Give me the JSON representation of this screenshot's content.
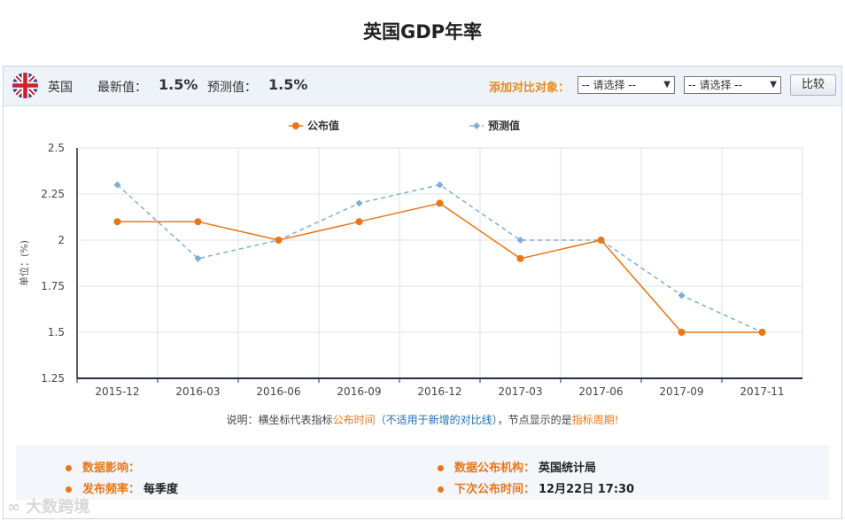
{
  "page": {
    "title": "英国GDP年率"
  },
  "header": {
    "country": "英国",
    "latest_label": "最新值：",
    "latest_value": "1.5%",
    "forecast_label": "预测值：",
    "forecast_value": "1.5%",
    "compare_label": "添加对比对象：",
    "select1": "-- 请选择 --",
    "select2": "-- 请选择 --",
    "compare_button": "比较",
    "caret": "▼"
  },
  "chart_data": {
    "type": "line",
    "categories": [
      "2015-12",
      "2016-03",
      "2016-06",
      "2016-09",
      "2016-12",
      "2017-03",
      "2017-06",
      "2017-09",
      "2017-11"
    ],
    "series": [
      {
        "name": "公布值",
        "values": [
          2.1,
          2.1,
          2.0,
          2.1,
          2.2,
          1.9,
          2.0,
          1.5,
          1.5
        ],
        "color": "#e87817",
        "style": "solid"
      },
      {
        "name": "预测值",
        "values": [
          2.3,
          1.9,
          2.0,
          2.2,
          2.3,
          2.0,
          2.0,
          1.7,
          1.5
        ],
        "color": "#7eaed8",
        "style": "dashed"
      }
    ],
    "ylabel": "单位：(%)",
    "ylim": [
      1.25,
      2.5
    ],
    "yticks": [
      2.5,
      2.25,
      2,
      1.75,
      1.5,
      1.25
    ],
    "ytick_labels": [
      "2.5",
      "2.25",
      "2",
      "1.75",
      "1.5",
      "1.25"
    ],
    "grid": true,
    "legend_position": "top-center"
  },
  "note": {
    "prefix": "说明：横坐标代表指标",
    "time": "公布时间",
    "paren": "（不适用于新增的对比线）",
    "mid": "，节点显示的是",
    "period": "指标周期",
    "end": "!"
  },
  "info": {
    "impact_label": "数据影响：",
    "impact_value": "",
    "freq_label": "发布频率：",
    "freq_value": "每季度",
    "agency_label": "数据公布机构：",
    "agency_value": "英国统计局",
    "next_label": "下次公布时间：",
    "next_value": "12月22日 17:30"
  },
  "watermark": "大数跨境"
}
